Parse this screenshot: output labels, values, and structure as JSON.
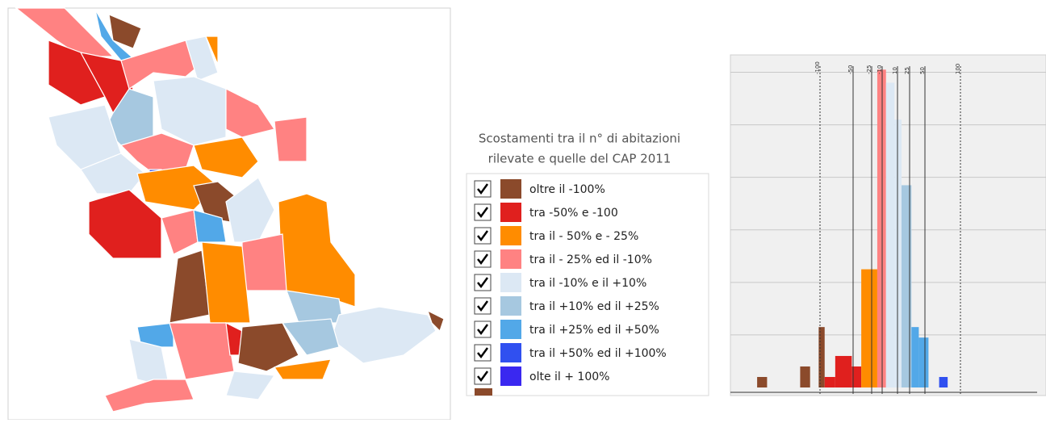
{
  "legend": {
    "title": [
      "Scostamenti tra  il n° di abitazioni",
      "rilevate e quelle del CAP 2011"
    ],
    "items": [
      {
        "label": "oltre il -100%",
        "color": "#8b4a2b"
      },
      {
        "label": "tra -50% e -100",
        "color": "#e0201e"
      },
      {
        "label": "tra il - 50% e - 25%",
        "color": "#ff8c00"
      },
      {
        "label": "tra il - 25% ed il -10%",
        "color": "#ff8282"
      },
      {
        "label": "tra il -10% e il +10%",
        "color": "#dce8f4"
      },
      {
        "label": "tra il +10% ed il +25%",
        "color": "#a6c8e0"
      },
      {
        "label": "tra il +25% ed il +50%",
        "color": "#52a8e8"
      },
      {
        "label": "tra il +50% ed il +100%",
        "color": "#3050f0"
      },
      {
        "label": "olte il + 100%",
        "color": "#3a28f0"
      }
    ]
  },
  "histogram": {
    "ylim": [
      0,
      6.3
    ],
    "yticks": [
      1,
      2,
      3,
      4,
      5,
      6
    ],
    "xticks": [
      -100,
      -50,
      -25,
      -10,
      10,
      25,
      50,
      100
    ],
    "bars": [
      {
        "x0": -195,
        "x1": -180,
        "value": 0.2,
        "color": "#8b4a2b"
      },
      {
        "x0": -130,
        "x1": -115,
        "value": 0.4,
        "color": "#8b4a2b"
      },
      {
        "x0": -102,
        "x1": -93,
        "value": 1.15,
        "color": "#8b4a2b"
      },
      {
        "x0": -93,
        "x1": -77,
        "value": 0.2,
        "color": "#e0201e"
      },
      {
        "x0": -77,
        "x1": -52,
        "value": 0.6,
        "color": "#e0201e"
      },
      {
        "x0": -52,
        "x1": -39,
        "value": 0.4,
        "color": "#e0201e"
      },
      {
        "x0": -39,
        "x1": -17,
        "value": 2.25,
        "color": "#ff8c00"
      },
      {
        "x0": -17,
        "x1": -5,
        "value": 6.05,
        "color": "#ff8282"
      },
      {
        "x0": -5,
        "x1": 6,
        "value": 5.8,
        "color": "#dce8f4"
      },
      {
        "x0": 6,
        "x1": 15,
        "value": 5.1,
        "color": "#dce8f4"
      },
      {
        "x0": 15,
        "x1": 28,
        "value": 3.85,
        "color": "#a6c8e0"
      },
      {
        "x0": 28,
        "x1": 40,
        "value": 1.15,
        "color": "#52a8e8"
      },
      {
        "x0": 40,
        "x1": 55,
        "value": 0.95,
        "color": "#52a8e8"
      },
      {
        "x0": 70,
        "x1": 82,
        "value": 0.2,
        "color": "#3050f0"
      }
    ]
  }
}
